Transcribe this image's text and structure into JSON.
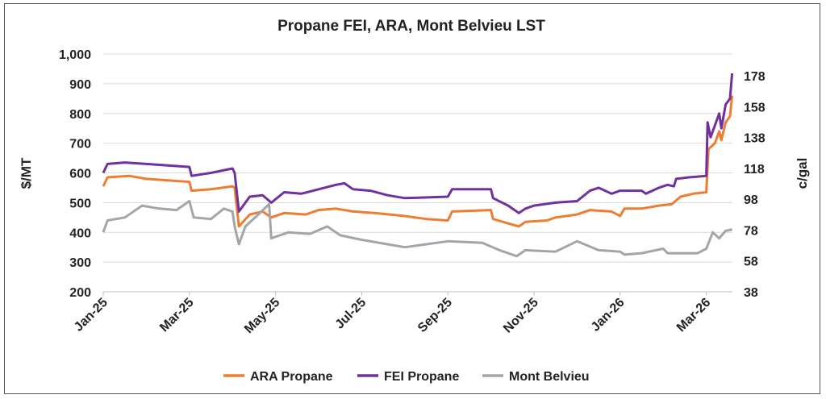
{
  "chart_data": {
    "type": "line",
    "title": "Propane FEI, ARA, Mont Belvieu LST",
    "ylabel": "$/MT",
    "y2label": "c/gal",
    "ylim": [
      200,
      1000
    ],
    "yticks": [
      200,
      300,
      400,
      500,
      600,
      700,
      800,
      900,
      1000
    ],
    "ytick_labels": [
      "200",
      "300",
      "400",
      "500",
      "600",
      "700",
      "800",
      "900",
      "1,000"
    ],
    "y2ticks": [
      38,
      58,
      78,
      98,
      118,
      138,
      158,
      178
    ],
    "y2_per_y_ratio": 5.19,
    "x_unit": "months since Jan-25",
    "xlim": [
      0,
      14.6
    ],
    "xticks": [
      0,
      2,
      4,
      6,
      8,
      10,
      12,
      14
    ],
    "xtick_labels": [
      "Jan-25",
      "Mar-25",
      "May-25",
      "Jul-25",
      "Sep-25",
      "Nov-25",
      "Jan-26",
      "Mar-26"
    ],
    "grid": true,
    "legend_position": "bottom",
    "series": [
      {
        "name": "ARA Propane",
        "color": "#ED7D31",
        "points": [
          [
            0,
            555
          ],
          [
            0.1,
            585
          ],
          [
            0.6,
            590
          ],
          [
            1.0,
            580
          ],
          [
            1.5,
            575
          ],
          [
            2.0,
            570
          ],
          [
            2.05,
            540
          ],
          [
            2.5,
            545
          ],
          [
            3.0,
            555
          ],
          [
            3.05,
            550
          ],
          [
            3.15,
            420
          ],
          [
            3.4,
            460
          ],
          [
            3.7,
            470
          ],
          [
            3.9,
            450
          ],
          [
            4.2,
            465
          ],
          [
            4.7,
            460
          ],
          [
            5.0,
            475
          ],
          [
            5.4,
            480
          ],
          [
            5.8,
            470
          ],
          [
            6.3,
            465
          ],
          [
            7.0,
            455
          ],
          [
            7.5,
            445
          ],
          [
            8.0,
            440
          ],
          [
            8.1,
            470
          ],
          [
            9.0,
            475
          ],
          [
            9.05,
            445
          ],
          [
            9.4,
            430
          ],
          [
            9.65,
            420
          ],
          [
            9.8,
            435
          ],
          [
            10.3,
            440
          ],
          [
            10.5,
            450
          ],
          [
            11.0,
            460
          ],
          [
            11.3,
            475
          ],
          [
            11.8,
            470
          ],
          [
            12.0,
            455
          ],
          [
            12.1,
            480
          ],
          [
            12.5,
            480
          ],
          [
            12.9,
            490
          ],
          [
            13.2,
            495
          ],
          [
            13.4,
            520
          ],
          [
            13.7,
            530
          ],
          [
            14.0,
            535
          ],
          [
            14.05,
            680
          ],
          [
            14.2,
            700
          ],
          [
            14.3,
            740
          ],
          [
            14.35,
            710
          ],
          [
            14.45,
            770
          ],
          [
            14.55,
            790
          ],
          [
            14.6,
            860
          ]
        ]
      },
      {
        "name": "FEI Propane",
        "color": "#7030A0",
        "points": [
          [
            0,
            600
          ],
          [
            0.1,
            630
          ],
          [
            0.5,
            635
          ],
          [
            1.0,
            630
          ],
          [
            1.5,
            625
          ],
          [
            2.0,
            620
          ],
          [
            2.05,
            590
          ],
          [
            2.5,
            600
          ],
          [
            3.0,
            615
          ],
          [
            3.05,
            600
          ],
          [
            3.15,
            470
          ],
          [
            3.4,
            520
          ],
          [
            3.7,
            525
          ],
          [
            3.9,
            500
          ],
          [
            4.2,
            535
          ],
          [
            4.6,
            530
          ],
          [
            5.0,
            545
          ],
          [
            5.4,
            560
          ],
          [
            5.6,
            565
          ],
          [
            5.8,
            545
          ],
          [
            6.2,
            540
          ],
          [
            6.6,
            525
          ],
          [
            7.0,
            515
          ],
          [
            8.0,
            520
          ],
          [
            8.1,
            545
          ],
          [
            9.0,
            545
          ],
          [
            9.05,
            515
          ],
          [
            9.4,
            490
          ],
          [
            9.65,
            465
          ],
          [
            9.8,
            480
          ],
          [
            10.0,
            490
          ],
          [
            10.5,
            500
          ],
          [
            11.0,
            505
          ],
          [
            11.3,
            540
          ],
          [
            11.5,
            550
          ],
          [
            11.8,
            530
          ],
          [
            12.0,
            540
          ],
          [
            12.5,
            540
          ],
          [
            12.6,
            530
          ],
          [
            12.9,
            550
          ],
          [
            13.1,
            560
          ],
          [
            13.25,
            555
          ],
          [
            13.3,
            580
          ],
          [
            13.6,
            585
          ],
          [
            14.0,
            590
          ],
          [
            14.03,
            770
          ],
          [
            14.1,
            720
          ],
          [
            14.2,
            760
          ],
          [
            14.3,
            800
          ],
          [
            14.35,
            750
          ],
          [
            14.45,
            830
          ],
          [
            14.55,
            850
          ],
          [
            14.6,
            935
          ]
        ]
      },
      {
        "name": "Mont Belvieu",
        "color": "#A5A5A5",
        "points": [
          [
            0,
            400
          ],
          [
            0.1,
            440
          ],
          [
            0.5,
            450
          ],
          [
            0.9,
            490
          ],
          [
            1.3,
            480
          ],
          [
            1.7,
            475
          ],
          [
            2.0,
            505
          ],
          [
            2.1,
            450
          ],
          [
            2.5,
            445
          ],
          [
            2.8,
            480
          ],
          [
            3.0,
            470
          ],
          [
            3.05,
            420
          ],
          [
            3.15,
            360
          ],
          [
            3.3,
            420
          ],
          [
            3.6,
            460
          ],
          [
            3.85,
            495
          ],
          [
            3.9,
            380
          ],
          [
            4.3,
            400
          ],
          [
            4.8,
            395
          ],
          [
            5.2,
            420
          ],
          [
            5.5,
            390
          ],
          [
            6.0,
            375
          ],
          [
            6.6,
            360
          ],
          [
            7.0,
            350
          ],
          [
            7.5,
            360
          ],
          [
            8.0,
            370
          ],
          [
            8.8,
            365
          ],
          [
            9.2,
            340
          ],
          [
            9.6,
            320
          ],
          [
            9.8,
            340
          ],
          [
            10.5,
            335
          ],
          [
            11.0,
            370
          ],
          [
            11.5,
            340
          ],
          [
            12.0,
            335
          ],
          [
            12.1,
            325
          ],
          [
            12.5,
            330
          ],
          [
            13.0,
            345
          ],
          [
            13.1,
            330
          ],
          [
            13.8,
            330
          ],
          [
            14.0,
            345
          ],
          [
            14.15,
            400
          ],
          [
            14.3,
            380
          ],
          [
            14.45,
            405
          ],
          [
            14.6,
            410
          ]
        ]
      }
    ]
  }
}
